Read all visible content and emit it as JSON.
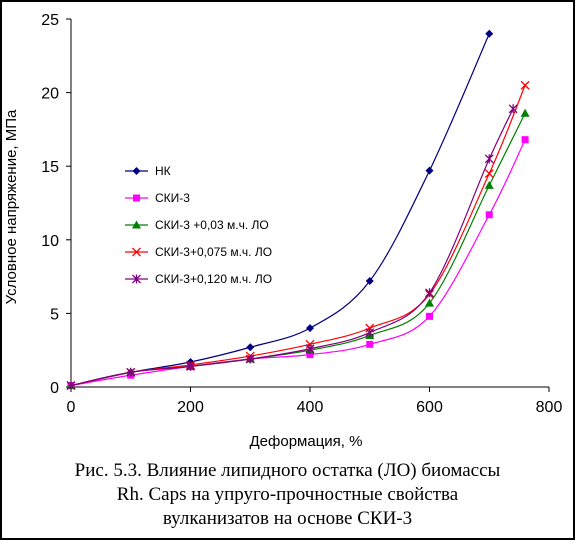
{
  "caption": {
    "line1": "Рис. 5.3. Влияние липидного остатка (ЛО) биомассы",
    "line2": "Rh. Caps на упруго-прочностные свойства",
    "line3": "вулканизатов на основе СКИ-3"
  },
  "chart_data": {
    "type": "line",
    "title": "",
    "xlabel": "Деформация,  %",
    "ylabel": "Условное напряжение, МПа",
    "xlim": [
      0,
      800
    ],
    "ylim": [
      0,
      25
    ],
    "xticks": [
      0,
      200,
      400,
      600,
      800
    ],
    "yticks": [
      0,
      5,
      10,
      15,
      20,
      25
    ],
    "grid": false,
    "legend_position": "left-center",
    "series": [
      {
        "name": "НК",
        "color": "#000080",
        "marker": "diamond",
        "points": [
          [
            0,
            0.1
          ],
          [
            100,
            1.0
          ],
          [
            200,
            1.7
          ],
          [
            300,
            2.7
          ],
          [
            400,
            4.0
          ],
          [
            500,
            7.2
          ],
          [
            600,
            14.7
          ],
          [
            700,
            24.0
          ]
        ]
      },
      {
        "name": "СКИ-3",
        "color": "#ff00ff",
        "marker": "square",
        "points": [
          [
            0,
            0.1
          ],
          [
            100,
            0.8
          ],
          [
            200,
            1.4
          ],
          [
            300,
            1.9
          ],
          [
            400,
            2.2
          ],
          [
            500,
            2.9
          ],
          [
            600,
            4.8
          ],
          [
            700,
            11.7
          ],
          [
            760,
            16.8
          ]
        ]
      },
      {
        "name": "СКИ-3 +0,03 м.ч. ЛО",
        "color": "#008000",
        "marker": "triangle",
        "points": [
          [
            0,
            0.1
          ],
          [
            100,
            1.0
          ],
          [
            200,
            1.4
          ],
          [
            300,
            1.9
          ],
          [
            400,
            2.5
          ],
          [
            500,
            3.5
          ],
          [
            600,
            5.7
          ],
          [
            700,
            13.7
          ],
          [
            760,
            18.6
          ]
        ]
      },
      {
        "name": "СКИ-3+0,075 м.ч. ЛО",
        "color": "#ff0000",
        "marker": "x",
        "points": [
          [
            0,
            0.1
          ],
          [
            100,
            1.0
          ],
          [
            200,
            1.5
          ],
          [
            300,
            2.1
          ],
          [
            400,
            2.9
          ],
          [
            500,
            4.0
          ],
          [
            600,
            6.3
          ],
          [
            700,
            14.5
          ],
          [
            760,
            20.5
          ]
        ]
      },
      {
        "name": "СКИ-3+0,120 м.ч. ЛО",
        "color": "#800080",
        "marker": "star",
        "points": [
          [
            0,
            0.1
          ],
          [
            100,
            1.0
          ],
          [
            200,
            1.4
          ],
          [
            300,
            1.9
          ],
          [
            400,
            2.6
          ],
          [
            500,
            3.7
          ],
          [
            600,
            6.4
          ],
          [
            700,
            15.5
          ],
          [
            740,
            18.9
          ]
        ]
      }
    ]
  }
}
